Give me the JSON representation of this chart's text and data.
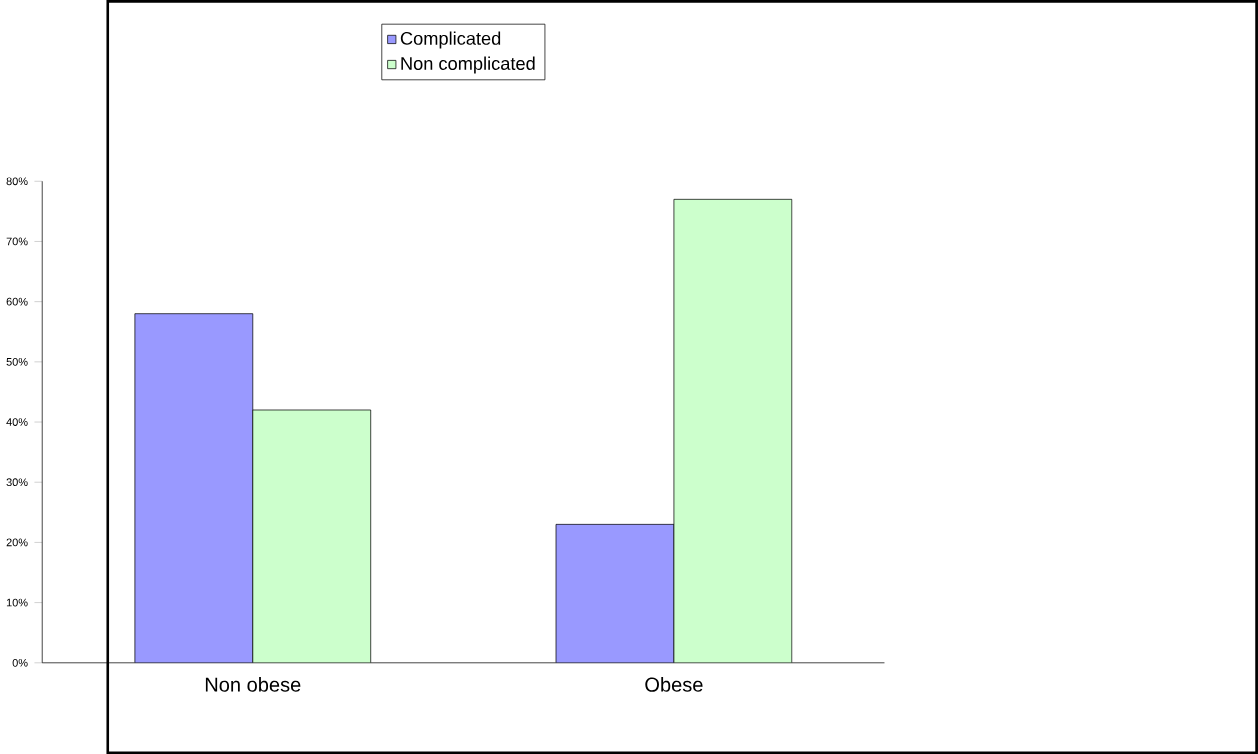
{
  "chart_data": {
    "type": "bar",
    "categories": [
      "Non obese",
      "Obese"
    ],
    "series": [
      {
        "name": "Complicated",
        "color": "#9999ff",
        "values": [
          58,
          23
        ]
      },
      {
        "name": "Non complicated",
        "color": "#ccffcc",
        "values": [
          42,
          77
        ]
      }
    ],
    "ylim": [
      0,
      80
    ],
    "yticks": [
      {
        "value": 0,
        "label": "0%"
      },
      {
        "value": 10,
        "label": "10%"
      },
      {
        "value": 20,
        "label": "20%"
      },
      {
        "value": 30,
        "label": "30%"
      },
      {
        "value": 40,
        "label": "40%"
      },
      {
        "value": 50,
        "label": "50%"
      },
      {
        "value": 60,
        "label": "60%"
      },
      {
        "value": 70,
        "label": "70%"
      },
      {
        "value": 80,
        "label": "80%"
      }
    ],
    "grid": false,
    "legend": "top"
  }
}
